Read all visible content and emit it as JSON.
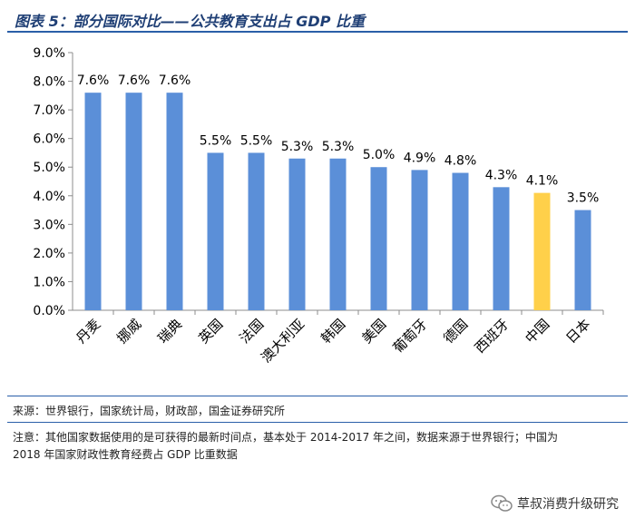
{
  "header": {
    "title": "图表 5：部分国际对比——公共教育支出占 GDP 比重"
  },
  "chart_data": {
    "type": "bar",
    "title": "图表 5：部分国际对比——公共教育支出占 GDP 比重",
    "categories": [
      "丹麦",
      "挪威",
      "瑞典",
      "英国",
      "法国",
      "澳大利亚",
      "韩国",
      "美国",
      "葡萄牙",
      "德国",
      "西班牙",
      "中国",
      "日本"
    ],
    "values": [
      7.6,
      7.6,
      7.6,
      5.5,
      5.5,
      5.3,
      5.3,
      5.0,
      4.9,
      4.8,
      4.3,
      4.1,
      3.5
    ],
    "data_labels": [
      "7.6%",
      "7.6%",
      "7.6%",
      "5.5%",
      "5.5%",
      "5.3%",
      "5.3%",
      "5.0%",
      "4.9%",
      "4.8%",
      "4.3%",
      "4.1%",
      "3.5%"
    ],
    "bar_colors": [
      "#5b8fd8",
      "#5b8fd8",
      "#5b8fd8",
      "#5b8fd8",
      "#5b8fd8",
      "#5b8fd8",
      "#5b8fd8",
      "#5b8fd8",
      "#5b8fd8",
      "#5b8fd8",
      "#5b8fd8",
      "#ffd04a",
      "#5b8fd8"
    ],
    "ylim": [
      0,
      9
    ],
    "yticks": [
      "0.0%",
      "1.0%",
      "2.0%",
      "3.0%",
      "4.0%",
      "5.0%",
      "6.0%",
      "7.0%",
      "8.0%",
      "9.0%"
    ],
    "xlabel": "",
    "ylabel": "",
    "grid": false
  },
  "footer": {
    "source": "来源：世界银行，国家统计局，财政部，国金证券研究所",
    "note_line1": "注意：其他国家数据使用的是可获得的最新时间点，基本处于 2014-2017 年之间，数据来源于世界银行；中国为",
    "note_line2": "2018 年国家财政性教育经费占 GDP 比重数据"
  },
  "watermark": {
    "text": "草叔消费升级研究",
    "icon": "wechat-icon"
  },
  "colors": {
    "accent": "#2a5fa8",
    "bar": "#5b8fd8",
    "highlight": "#ffd04a"
  }
}
